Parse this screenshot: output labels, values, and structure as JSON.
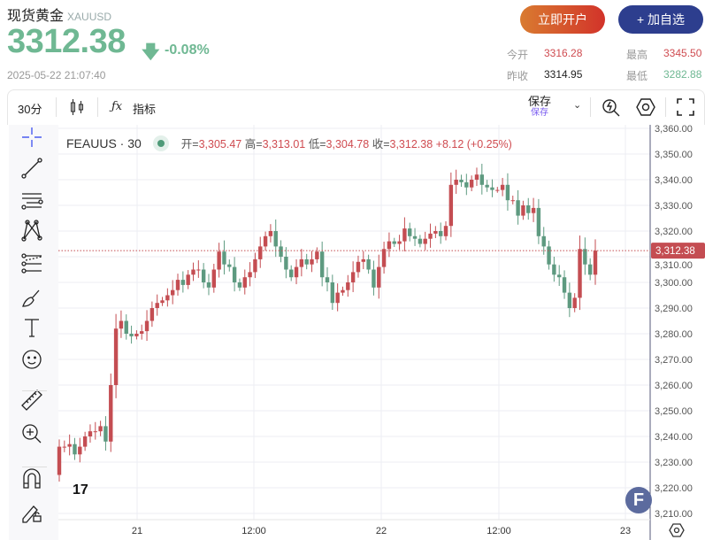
{
  "header": {
    "title": "现货黄金",
    "symbol": "XAUUSD",
    "price": "3312.38",
    "change_pct": "-0.08%",
    "direction_icon": "arrow-down-icon",
    "timestamp": "2025-05-22 21:07:40",
    "open_account_label": "立即开户",
    "add_watchlist_label": "+ 加自选",
    "stats": {
      "today_open_label": "今开",
      "today_open": "3316.28",
      "prev_close_label": "昨收",
      "prev_close": "3314.95",
      "high_label": "最高",
      "high": "3345.50",
      "low_label": "最低",
      "low": "3282.88"
    }
  },
  "toolbar": {
    "interval": "30分",
    "indicators_label": "指标",
    "save_label": "保存",
    "save_sub": "保存"
  },
  "legend": {
    "symbol": "FEAUUS · 30",
    "o_label": "开=",
    "o": "3,305.47",
    "h_label": "高=",
    "h": "3,313.01",
    "l_label": "低=",
    "l": "3,304.78",
    "c_label": "收=",
    "c": "3,312.38",
    "change": "+8.12 (+0.25%)"
  },
  "colors": {
    "up": "#c44d52",
    "down": "#5e9a80",
    "price_green": "#6fb893",
    "accent_blue": "#2d3e8e"
  },
  "chart_data": {
    "type": "candlestick",
    "interval": "30",
    "ylim": [
      3208,
      3362
    ],
    "yticks": [
      "3,360.00",
      "3,350.00",
      "3,340.00",
      "3,330.00",
      "3,320.00",
      "3,310.00",
      "3,300.00",
      "3,290.00",
      "3,280.00",
      "3,270.00",
      "3,260.00",
      "3,250.00",
      "3,240.00",
      "3,230.00",
      "3,220.00",
      "3,210.00"
    ],
    "xticks": [
      "21",
      "12:00",
      "22",
      "12:00",
      "23"
    ],
    "last_price_label": "3,312.38",
    "last_price": 3312.38,
    "first_open": 3225,
    "closes": [
      3236,
      3236,
      3237,
      3233,
      3236,
      3240,
      3242,
      3242,
      3244,
      3238,
      3260,
      3282,
      3285,
      3280,
      3279,
      3280,
      3281,
      3285,
      3290,
      3292,
      3293,
      3295,
      3297,
      3301,
      3299,
      3303,
      3305,
      3305,
      3300,
      3298,
      3305,
      3312,
      3307,
      3306,
      3300,
      3298,
      3302,
      3304,
      3309,
      3314,
      3318,
      3320,
      3314,
      3310,
      3305,
      3302,
      3306,
      3309,
      3307,
      3309,
      3312,
      3302,
      3300,
      3292,
      3296,
      3297,
      3300,
      3304,
      3308,
      3309,
      3305,
      3298,
      3306,
      3313,
      3316,
      3315,
      3316,
      3321,
      3318,
      3317,
      3315,
      3317,
      3319,
      3320,
      3318,
      3322,
      3338,
      3340,
      3339,
      3337,
      3340,
      3342,
      3338,
      3337,
      3336,
      3336,
      3338,
      3332,
      3332,
      3326,
      3330,
      3327,
      3329,
      3318,
      3314,
      3307,
      3303,
      3302,
      3296,
      3290,
      3294,
      3313,
      3307,
      3303,
      3312.38
    ]
  },
  "sidebar": {
    "tools": [
      "crosshair-icon",
      "trend-line-icon",
      "horizontal-lines-icon",
      "pattern-icon",
      "fib-icon",
      "brush-icon",
      "text-icon",
      "emoji-icon",
      "ruler-icon",
      "zoom-in-icon",
      "magnet-icon",
      "lock-drawing-icon"
    ]
  }
}
